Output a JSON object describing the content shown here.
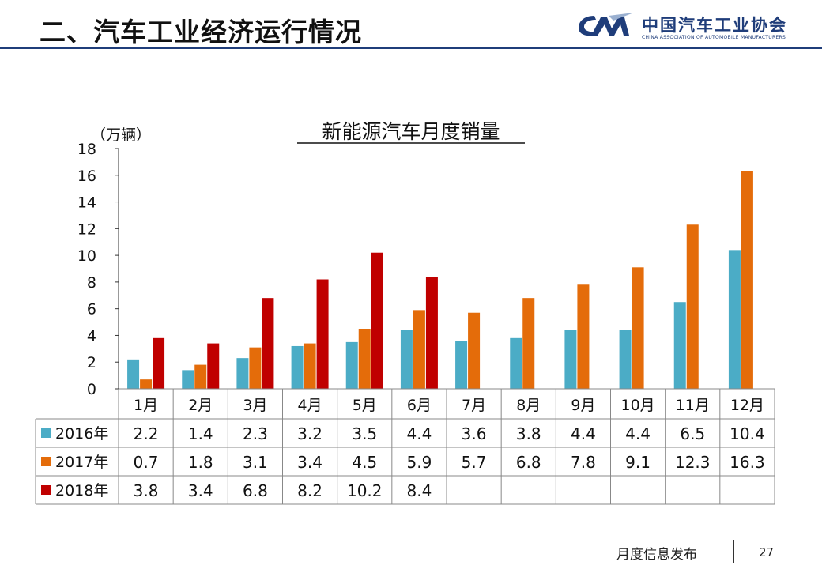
{
  "slide": {
    "title": "二、汽车工业经济运行情况",
    "logo_cn": "中国汽车工业协会",
    "logo_en": "CHINA ASSOCIATION OF AUTOMOBILE MANUFACTURERS",
    "logo_mark": "CAM",
    "footer": "月度信息发布",
    "page_number": "27"
  },
  "chart_data": {
    "type": "bar",
    "title": "新能源汽车月度销量",
    "ylabel": "（万辆）",
    "ylim": [
      0,
      18
    ],
    "yticks": [
      0,
      2,
      4,
      6,
      8,
      10,
      12,
      14,
      16,
      18
    ],
    "categories": [
      "1月",
      "2月",
      "3月",
      "4月",
      "5月",
      "6月",
      "7月",
      "8月",
      "9月",
      "10月",
      "11月",
      "12月"
    ],
    "series": [
      {
        "name": "2016年",
        "color": "#4bacc6",
        "values": [
          2.2,
          1.4,
          2.3,
          3.2,
          3.5,
          4.4,
          3.6,
          3.8,
          4.4,
          4.4,
          6.5,
          10.4
        ]
      },
      {
        "name": "2017年",
        "color": "#e46c0a",
        "values": [
          0.7,
          1.8,
          3.1,
          3.4,
          4.5,
          5.9,
          5.7,
          6.8,
          7.8,
          9.1,
          12.3,
          16.3
        ]
      },
      {
        "name": "2018年",
        "color": "#c00000",
        "values": [
          3.8,
          3.4,
          6.8,
          8.2,
          10.2,
          8.4,
          null,
          null,
          null,
          null,
          null,
          null
        ]
      }
    ],
    "grid": false,
    "legend": "data table"
  }
}
